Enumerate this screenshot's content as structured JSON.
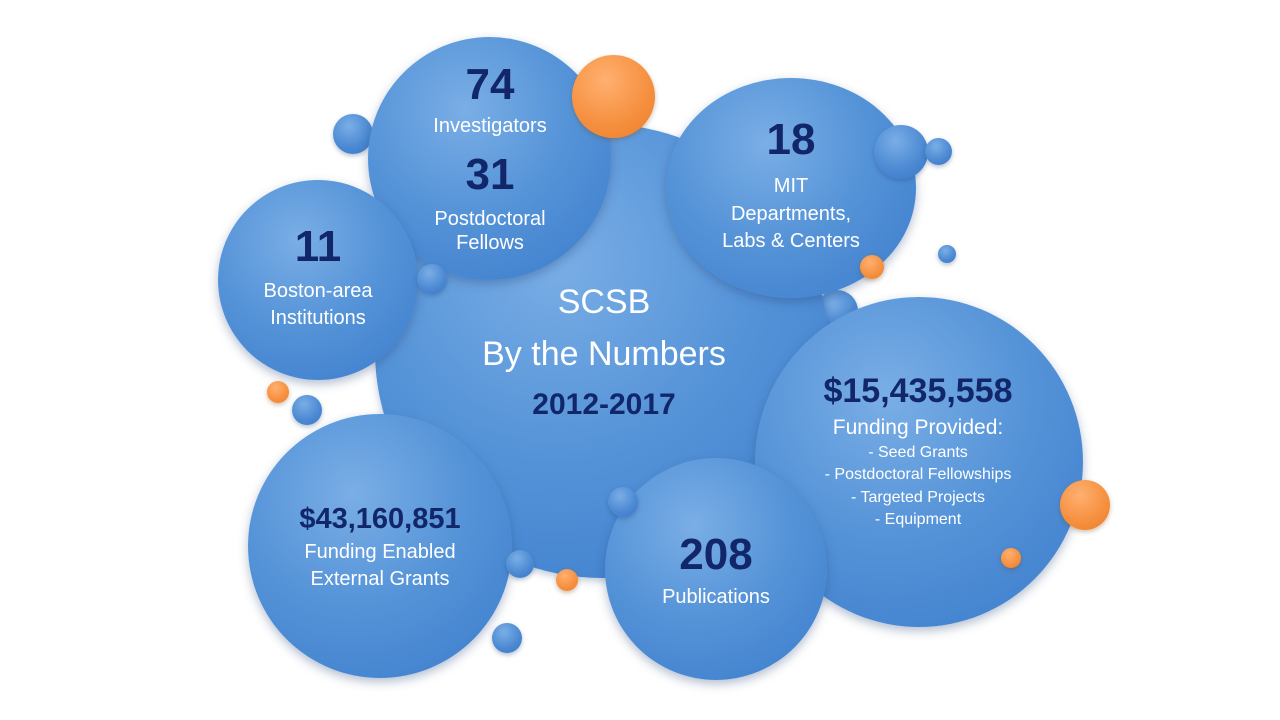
{
  "colors": {
    "bubble_blue": "#4a88d2",
    "number_navy": "#12266a",
    "label_white": "#ffffff",
    "accent_orange": "#f58f3e"
  },
  "center": {
    "title_line1": "SCSB",
    "title_line2": "By the Numbers",
    "years": "2012-2017"
  },
  "investigators": {
    "value": "74",
    "label": "Investigators"
  },
  "postdocs": {
    "value": "31",
    "label_line1": "Postdoctoral",
    "label_line2": "Fellows"
  },
  "departments": {
    "value": "18",
    "label_line1": "MIT",
    "label_line2": "Departments,",
    "label_line3": "Labs & Centers"
  },
  "institutions": {
    "value": "11",
    "label_line1": "Boston-area",
    "label_line2": "Institutions"
  },
  "funding_provided": {
    "value": "$15,435,558",
    "label": "Funding Provided:",
    "items": [
      "- Seed Grants",
      "- Postdoctoral Fellowships",
      "- Targeted Projects",
      "- Equipment"
    ]
  },
  "external_grants": {
    "value": "$43,160,851",
    "label_line1": "Funding Enabled",
    "label_line2": "External Grants"
  },
  "publications": {
    "value": "208",
    "label": "Publications"
  }
}
